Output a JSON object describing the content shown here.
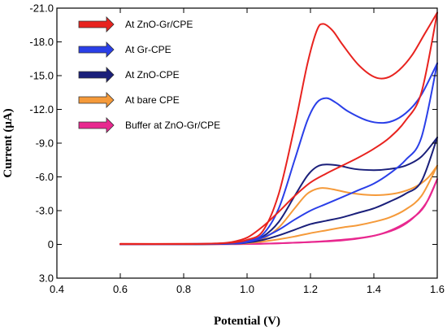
{
  "chart_data": {
    "type": "line",
    "xlabel": "Potential (V)",
    "ylabel": "Current (μA)",
    "xlim": [
      0.4,
      1.6
    ],
    "ylim": [
      -21.0,
      3.0
    ],
    "y_axis_inverted": true,
    "x_ticks": [
      "0.4",
      "0.6",
      "0.8",
      "1.0",
      "1.2",
      "1.4",
      "1.6"
    ],
    "y_ticks": [
      "-21.0",
      "-18.0",
      "-15.0",
      "-12.0",
      "-9.0",
      "-6.0",
      "-3.0",
      "0",
      "3.0"
    ],
    "legend_position": "top-left",
    "series": [
      {
        "name": "At ZnO-Gr/CPE",
        "color": "#e8231f",
        "forward": [
          [
            0.6,
            -0.05
          ],
          [
            0.8,
            -0.05
          ],
          [
            0.9,
            -0.08
          ],
          [
            0.95,
            -0.15
          ],
          [
            1.0,
            -0.4
          ],
          [
            1.05,
            -1.2
          ],
          [
            1.1,
            -4.5
          ],
          [
            1.15,
            -10.5
          ],
          [
            1.19,
            -16.0
          ],
          [
            1.22,
            -19.0
          ],
          [
            1.24,
            -19.6
          ],
          [
            1.27,
            -19.0
          ],
          [
            1.3,
            -17.8
          ],
          [
            1.35,
            -16.0
          ],
          [
            1.4,
            -14.9
          ],
          [
            1.44,
            -14.8
          ],
          [
            1.48,
            -15.5
          ],
          [
            1.52,
            -16.8
          ],
          [
            1.56,
            -18.7
          ],
          [
            1.6,
            -20.6
          ]
        ],
        "reverse": [
          [
            1.6,
            -20.6
          ],
          [
            1.55,
            -13.5
          ],
          [
            1.5,
            -11.0
          ],
          [
            1.45,
            -9.5
          ],
          [
            1.4,
            -8.5
          ],
          [
            1.35,
            -7.7
          ],
          [
            1.3,
            -7.0
          ],
          [
            1.25,
            -6.3
          ],
          [
            1.2,
            -5.5
          ],
          [
            1.15,
            -4.3
          ],
          [
            1.1,
            -2.9
          ],
          [
            1.05,
            -1.6
          ],
          [
            1.0,
            -0.6
          ],
          [
            0.95,
            -0.2
          ],
          [
            0.9,
            -0.08
          ],
          [
            0.8,
            -0.03
          ],
          [
            0.6,
            -0.02
          ]
        ]
      },
      {
        "name": "At Gr-CPE",
        "color": "#2a3fe8",
        "forward": [
          [
            0.6,
            -0.03
          ],
          [
            0.8,
            -0.04
          ],
          [
            0.9,
            -0.06
          ],
          [
            0.95,
            -0.12
          ],
          [
            1.0,
            -0.3
          ],
          [
            1.05,
            -0.9
          ],
          [
            1.1,
            -3.2
          ],
          [
            1.15,
            -7.5
          ],
          [
            1.19,
            -11.0
          ],
          [
            1.22,
            -12.6
          ],
          [
            1.25,
            -13.0
          ],
          [
            1.28,
            -12.6
          ],
          [
            1.32,
            -11.8
          ],
          [
            1.38,
            -11.0
          ],
          [
            1.43,
            -10.8
          ],
          [
            1.47,
            -11.1
          ],
          [
            1.51,
            -11.9
          ],
          [
            1.55,
            -13.3
          ],
          [
            1.6,
            -16.1
          ]
        ],
        "reverse": [
          [
            1.6,
            -16.1
          ],
          [
            1.55,
            -9.5
          ],
          [
            1.5,
            -7.5
          ],
          [
            1.45,
            -6.3
          ],
          [
            1.4,
            -5.4
          ],
          [
            1.35,
            -4.8
          ],
          [
            1.3,
            -4.2
          ],
          [
            1.25,
            -3.6
          ],
          [
            1.2,
            -3.0
          ],
          [
            1.15,
            -2.2
          ],
          [
            1.1,
            -1.3
          ],
          [
            1.05,
            -0.6
          ],
          [
            1.0,
            -0.2
          ],
          [
            0.95,
            -0.07
          ],
          [
            0.8,
            -0.02
          ],
          [
            0.6,
            -0.01
          ]
        ]
      },
      {
        "name": "At ZnO-CPE",
        "color": "#1a1f7a",
        "forward": [
          [
            0.6,
            -0.02
          ],
          [
            0.8,
            -0.03
          ],
          [
            0.9,
            -0.04
          ],
          [
            0.95,
            -0.08
          ],
          [
            1.0,
            -0.2
          ],
          [
            1.05,
            -0.7
          ],
          [
            1.1,
            -2.0
          ],
          [
            1.15,
            -4.3
          ],
          [
            1.19,
            -6.1
          ],
          [
            1.22,
            -6.9
          ],
          [
            1.25,
            -7.1
          ],
          [
            1.29,
            -7.0
          ],
          [
            1.34,
            -6.7
          ],
          [
            1.4,
            -6.6
          ],
          [
            1.45,
            -6.7
          ],
          [
            1.5,
            -7.0
          ],
          [
            1.55,
            -7.8
          ],
          [
            1.6,
            -9.5
          ]
        ],
        "reverse": [
          [
            1.6,
            -9.5
          ],
          [
            1.55,
            -5.6
          ],
          [
            1.5,
            -4.5
          ],
          [
            1.45,
            -3.8
          ],
          [
            1.4,
            -3.2
          ],
          [
            1.35,
            -2.8
          ],
          [
            1.3,
            -2.4
          ],
          [
            1.25,
            -2.1
          ],
          [
            1.2,
            -1.8
          ],
          [
            1.15,
            -1.3
          ],
          [
            1.1,
            -0.8
          ],
          [
            1.05,
            -0.4
          ],
          [
            1.0,
            -0.15
          ],
          [
            0.95,
            -0.05
          ],
          [
            0.8,
            -0.01
          ],
          [
            0.6,
            -0.01
          ]
        ]
      },
      {
        "name": "At bare CPE",
        "color": "#f59a3a",
        "forward": [
          [
            0.6,
            -0.02
          ],
          [
            0.8,
            -0.02
          ],
          [
            0.9,
            -0.03
          ],
          [
            0.95,
            -0.06
          ],
          [
            1.0,
            -0.15
          ],
          [
            1.05,
            -0.5
          ],
          [
            1.1,
            -1.5
          ],
          [
            1.15,
            -3.2
          ],
          [
            1.19,
            -4.5
          ],
          [
            1.23,
            -5.0
          ],
          [
            1.27,
            -4.9
          ],
          [
            1.32,
            -4.6
          ],
          [
            1.38,
            -4.4
          ],
          [
            1.43,
            -4.4
          ],
          [
            1.48,
            -4.6
          ],
          [
            1.53,
            -5.1
          ],
          [
            1.57,
            -5.9
          ],
          [
            1.6,
            -7.0
          ]
        ],
        "reverse": [
          [
            1.6,
            -7.0
          ],
          [
            1.55,
            -4.3
          ],
          [
            1.5,
            -3.1
          ],
          [
            1.45,
            -2.4
          ],
          [
            1.4,
            -2.0
          ],
          [
            1.35,
            -1.7
          ],
          [
            1.3,
            -1.5
          ],
          [
            1.25,
            -1.25
          ],
          [
            1.2,
            -1.0
          ],
          [
            1.15,
            -0.7
          ],
          [
            1.1,
            -0.45
          ],
          [
            1.05,
            -0.25
          ],
          [
            1.0,
            -0.1
          ],
          [
            0.95,
            -0.04
          ],
          [
            0.8,
            -0.01
          ],
          [
            0.6,
            -0.01
          ]
        ]
      },
      {
        "name": "Buffer at ZnO-Gr/CPE",
        "color": "#e8288f",
        "forward": [
          [
            0.6,
            -0.01
          ],
          [
            0.8,
            -0.01
          ],
          [
            0.95,
            -0.02
          ],
          [
            1.05,
            -0.05
          ],
          [
            1.15,
            -0.15
          ],
          [
            1.25,
            -0.3
          ],
          [
            1.35,
            -0.55
          ],
          [
            1.42,
            -0.9
          ],
          [
            1.48,
            -1.5
          ],
          [
            1.53,
            -2.5
          ],
          [
            1.57,
            -3.9
          ],
          [
            1.6,
            -5.8
          ]
        ],
        "reverse": [
          [
            1.6,
            -5.8
          ],
          [
            1.56,
            -3.4
          ],
          [
            1.52,
            -2.3
          ],
          [
            1.48,
            -1.6
          ],
          [
            1.43,
            -1.0
          ],
          [
            1.38,
            -0.65
          ],
          [
            1.3,
            -0.35
          ],
          [
            1.2,
            -0.2
          ],
          [
            1.1,
            -0.1
          ],
          [
            1.0,
            -0.05
          ],
          [
            0.8,
            -0.01
          ],
          [
            0.6,
            -0.01
          ]
        ]
      }
    ]
  }
}
